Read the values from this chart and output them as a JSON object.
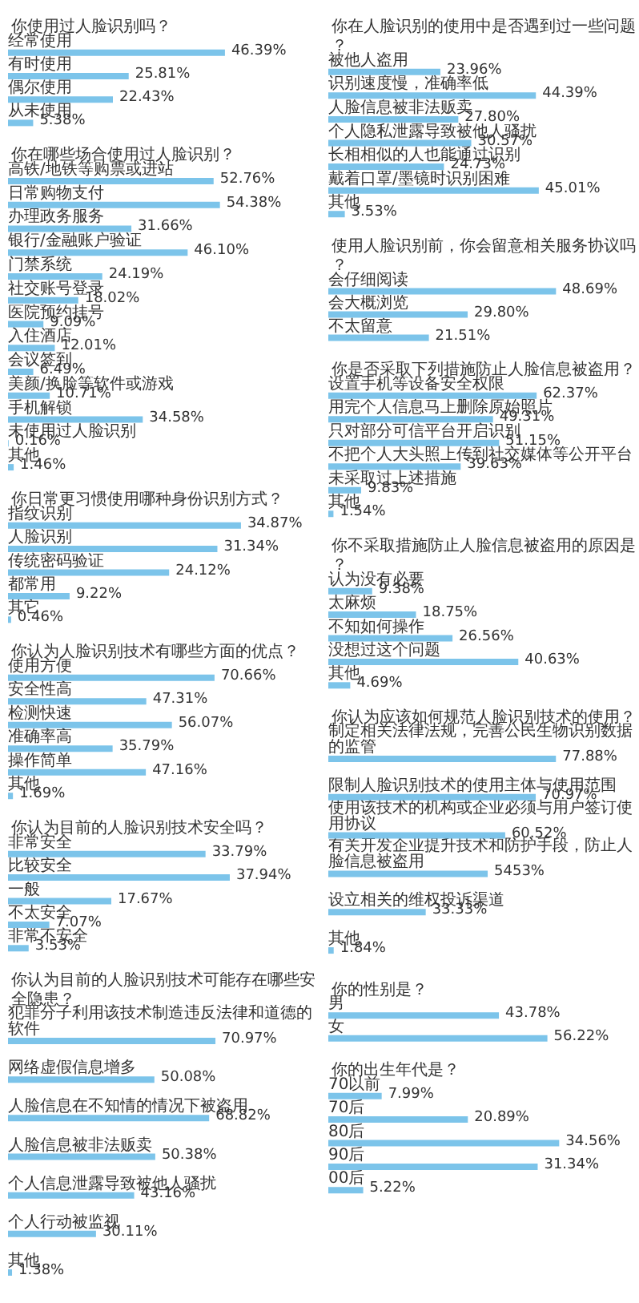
{
  "chart_data": [
    {
      "type": "bar",
      "orientation": "horizontal",
      "title": "你使用过人脸识别吗？",
      "categories": [
        "经常使用",
        "有时使用",
        "偶尔使用",
        "从未使用"
      ],
      "values": [
        46.39,
        25.81,
        22.43,
        5.38
      ],
      "value_labels": [
        "46.39%",
        "25.81%",
        "22.43%",
        "5.38%"
      ],
      "color": "#7cc4ea"
    },
    {
      "type": "bar",
      "orientation": "horizontal",
      "title": "你在哪些场合使用过人脸识别？",
      "categories": [
        "高铁/地铁等购票或进站",
        "日常购物支付",
        "办理政务服务",
        "银行/金融账户验证",
        "门禁系统",
        "社交账号登录",
        "医院预约挂号",
        "入住酒店",
        "会议签到",
        "美颜/换脸等软件或游戏",
        "手机解锁",
        "未使用过人脸识别",
        "其他"
      ],
      "values": [
        52.76,
        54.38,
        31.66,
        46.1,
        24.19,
        18.02,
        9.09,
        12.01,
        6.49,
        10.71,
        34.58,
        0.16,
        1.46
      ],
      "value_labels": [
        "52.76%",
        "54.38%",
        "31.66%",
        "46.10%",
        "24.19%",
        "18.02%",
        "9.09%",
        "12.01%",
        "6.49%",
        "10.71%",
        "34.58%",
        "0.16%",
        "1.46%"
      ],
      "color": "#7cc4ea"
    },
    {
      "type": "bar",
      "orientation": "horizontal",
      "title": "你日常更习惯使用哪种身份识别方式？",
      "categories": [
        "指纹识别",
        "人脸识别",
        "传统密码验证",
        "都常用",
        "其它"
      ],
      "values": [
        34.87,
        31.34,
        24.12,
        9.22,
        0.46
      ],
      "value_labels": [
        "34.87%",
        "31.34%",
        "24.12%",
        "9.22%",
        "0.46%"
      ],
      "color": "#7cc4ea"
    },
    {
      "type": "bar",
      "orientation": "horizontal",
      "title": "你认为人脸识别技术有哪些方面的优点？",
      "categories": [
        "使用方便",
        "安全性高",
        "检测快速",
        "准确率高",
        "操作简单",
        "其他"
      ],
      "values": [
        70.66,
        47.31,
        56.07,
        35.79,
        47.16,
        1.69
      ],
      "value_labels": [
        "70.66%",
        "47.31%",
        "56.07%",
        "35.79%",
        "47.16%",
        "1.69%"
      ],
      "color": "#7cc4ea"
    },
    {
      "type": "bar",
      "orientation": "horizontal",
      "title": "你认为目前的人脸识别技术安全吗？",
      "categories": [
        "非常安全",
        "比较安全",
        "一般",
        "不太安全",
        "非常不安全"
      ],
      "values": [
        33.79,
        37.94,
        17.67,
        7.07,
        3.53
      ],
      "value_labels": [
        "33.79%",
        "37.94%",
        "17.67%",
        "7.07%",
        "3.53%"
      ],
      "color": "#7cc4ea"
    },
    {
      "type": "bar",
      "orientation": "horizontal",
      "title": "你认为目前的人脸识别技术可能存在哪些安全隐患？",
      "categories": [
        "犯罪分子利用该技术制造违反法律和道德的软件",
        "网络虚假信息增多",
        "人脸信息在不知情的情况下被盗用",
        "人脸信息被非法贩卖",
        "个人信息泄露导致被他人骚扰",
        "个人行动被监视",
        "其他"
      ],
      "values": [
        70.97,
        50.08,
        68.82,
        50.38,
        43.16,
        30.11,
        1.38
      ],
      "value_labels": [
        "70.97%",
        "50.08%",
        "68.82%",
        "50.38%",
        "43.16%",
        "30.11%",
        "1.38%"
      ],
      "color": "#7cc4ea"
    },
    {
      "type": "bar",
      "orientation": "horizontal",
      "title": "你在人脸识别的使用中是否遇到过一些问题？",
      "categories": [
        "被他人盗用",
        "识别速度慢，准确率低",
        "人脸信息被非法贩卖",
        "个人隐私泄露导致被他人骚扰",
        "长相相似的人也能通过识别",
        "戴着口罩/墨镜时识别困难",
        "其他"
      ],
      "values": [
        23.96,
        44.39,
        27.8,
        30.57,
        24.73,
        45.01,
        3.53
      ],
      "value_labels": [
        "23.96%",
        "44.39%",
        "27.80%",
        "30.57%",
        "24.73%",
        "45.01%",
        "3.53%"
      ],
      "color": "#7cc4ea"
    },
    {
      "type": "bar",
      "orientation": "horizontal",
      "title": "使用人脸识别前，你会留意相关服务协议吗？",
      "categories": [
        "会仔细阅读",
        "会大概浏览",
        "不太留意"
      ],
      "values": [
        48.69,
        29.8,
        21.51
      ],
      "value_labels": [
        "48.69%",
        "29.80%",
        "21.51%"
      ],
      "color": "#7cc4ea"
    },
    {
      "type": "bar",
      "orientation": "horizontal",
      "title": "你是否采取下列措施防止人脸信息被盗用？",
      "categories": [
        "设置手机等设备安全权限",
        "用完个人信息马上删除原始照片",
        "只对部分可信平台开启识别",
        "不把个人大头照上传到社交媒体等公开平台",
        "未采取过上述措施",
        "其他"
      ],
      "values": [
        62.37,
        49.31,
        51.15,
        39.63,
        9.83,
        1.54
      ],
      "value_labels": [
        "62.37%",
        "49.31%",
        "51.15%",
        "39.63%",
        "9.83%",
        "1.54%"
      ],
      "color": "#7cc4ea"
    },
    {
      "type": "bar",
      "orientation": "horizontal",
      "title": "你不采取措施防止人脸信息被盗用的原因是？",
      "categories": [
        "认为没有必要",
        "太麻烦",
        "不知如何操作",
        "没想过这个问题",
        "其他"
      ],
      "values": [
        9.38,
        18.75,
        26.56,
        40.63,
        4.69
      ],
      "value_labels": [
        "9.38%",
        "18.75%",
        "26.56%",
        "40.63%",
        "4.69%"
      ],
      "color": "#7cc4ea"
    },
    {
      "type": "bar",
      "orientation": "horizontal",
      "title": "你认为应该如何规范人脸识别技术的使用？",
      "categories": [
        "制定相关法律法规，完善公民生物识别数据的监管",
        "限制人脸识别技术的使用主体与使用范围",
        "使用该技术的机构或企业必须与用户签订使用协议",
        "有关开发企业提升技术和防护手段，防止人脸信息被盗用",
        "设立相关的维权投诉渠道",
        "其他"
      ],
      "values": [
        77.88,
        70.97,
        60.52,
        54.53,
        33.33,
        1.84
      ],
      "value_labels": [
        "77.88%",
        "70.97%",
        "60.52%",
        "5453%",
        "33.33%",
        "1.84%"
      ],
      "color": "#7cc4ea"
    },
    {
      "type": "bar",
      "orientation": "horizontal",
      "title": "你的性别是？",
      "categories": [
        "男",
        "女"
      ],
      "values": [
        43.78,
        56.22
      ],
      "value_labels": [
        "43.78%",
        "56.22%"
      ],
      "color": "#7cc4ea"
    },
    {
      "type": "bar",
      "orientation": "horizontal",
      "title": "你的出生年代是？",
      "categories": [
        "70以前",
        "70后",
        "80后",
        "90后",
        "00后"
      ],
      "values": [
        7.99,
        20.89,
        34.56,
        31.34,
        5.22
      ],
      "value_labels": [
        "7.99%",
        "20.89%",
        "34.56%",
        "31.34%",
        "5.22%"
      ],
      "color": "#7cc4ea"
    }
  ]
}
